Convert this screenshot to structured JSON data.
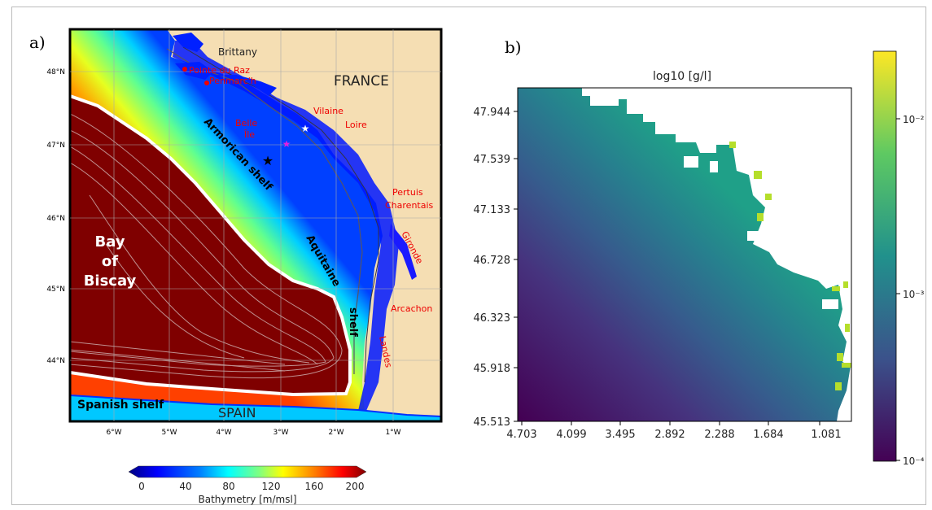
{
  "panel_a": {
    "label": "a)",
    "lat_ticks": [
      "48°N",
      "47°N",
      "46°N",
      "45°N",
      "44°N"
    ],
    "lon_ticks": [
      "6°W",
      "5°W",
      "4°W",
      "3°W",
      "2°W",
      "1°W"
    ],
    "labels": {
      "brittany": "Brittany",
      "pointe_du_raz": "Pointe du Raz",
      "penmarch": "Penmarc'h",
      "france": "FRANCE",
      "vilaine": "Vilaine",
      "loire": "Loire",
      "belle_ile_1": "Belle",
      "belle_ile_2": "Île",
      "armorican_shelf": "Armorican shelf",
      "pertuis_1": "Pertuis",
      "pertuis_2": "Charentais",
      "gironde": "Gironde",
      "aquitaine_shelf": "Aquitaine",
      "shelf_word": "shelf",
      "arcachon": "Arcachon",
      "landes": "Landes",
      "bay_1": "Bay",
      "bay_2": "of",
      "bay_3": "Biscay",
      "spanish_shelf": "Spanish shelf",
      "spain": "SPAIN"
    },
    "colorbar": {
      "ticks": [
        "0",
        "40",
        "80",
        "120",
        "160",
        "200"
      ],
      "label": "Bathymetry [m/msl]",
      "colors": [
        "#00007f",
        "#0000ff",
        "#0080ff",
        "#00ffff",
        "#80ff80",
        "#ffff00",
        "#ff8000",
        "#ff0000",
        "#7f0000"
      ]
    },
    "land_color": "#f5deb3"
  },
  "panel_b": {
    "label": "b)",
    "title": "log10 [g/l]",
    "y_ticks": [
      "47.944",
      "47.539",
      "47.133",
      "46.728",
      "46.323",
      "45.918",
      "45.513"
    ],
    "x_ticks": [
      "4.703",
      "4.099",
      "3.495",
      "2.892",
      "2.288",
      "1.684",
      "1.081"
    ],
    "colorbar": {
      "tick_labels": [
        "10⁻²",
        "10⁻³",
        "10⁻⁴"
      ],
      "colors": [
        "#fde725",
        "#5ec962",
        "#21918c",
        "#3b528b",
        "#440154"
      ]
    }
  }
}
